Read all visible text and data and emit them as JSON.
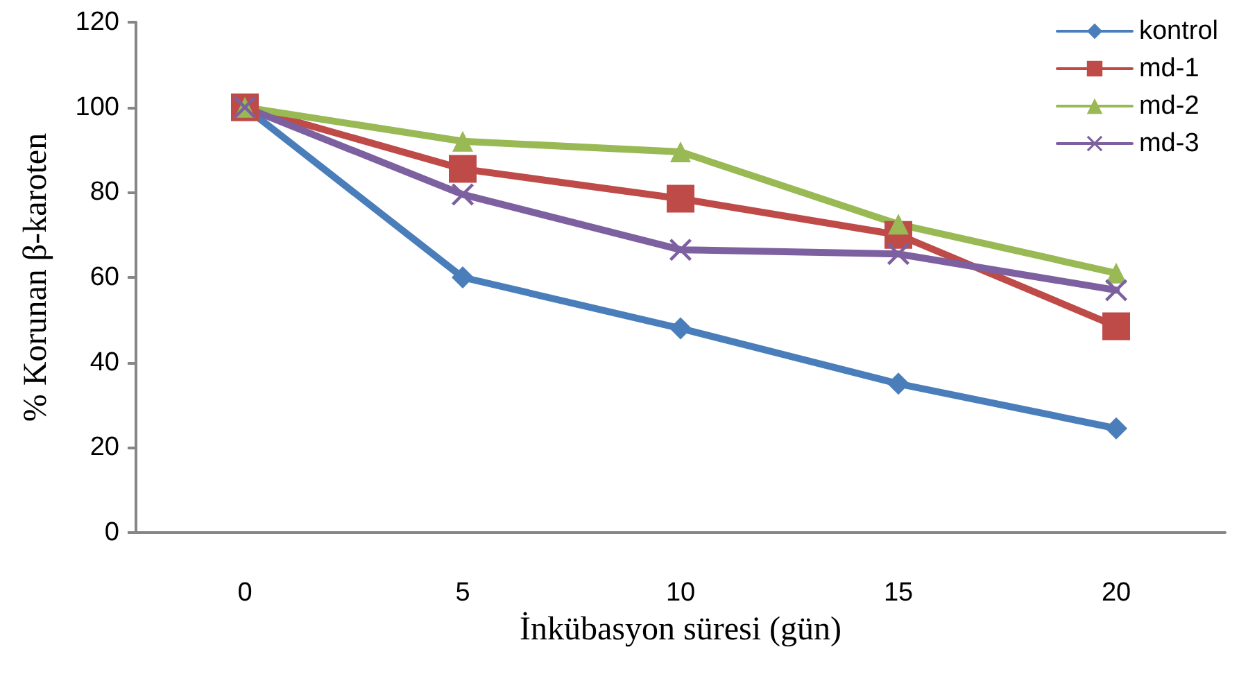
{
  "chart_data": {
    "type": "line",
    "xlabel": "İnkübasyon süresi (gün)",
    "ylabel": "% Korunan β-karoten",
    "categories": [
      "0",
      "5",
      "10",
      "15",
      "20"
    ],
    "series": [
      {
        "name": "kontrol",
        "color": "#4a7ebb",
        "marker": "diamond",
        "values": [
          100,
          60,
          48,
          35,
          24.5
        ]
      },
      {
        "name": "md-1",
        "color": "#be4b48",
        "marker": "square",
        "values": [
          100,
          85.5,
          78.5,
          70,
          48.5
        ]
      },
      {
        "name": "md-2",
        "color": "#98b954",
        "marker": "triangle",
        "values": [
          100,
          92,
          89.5,
          72.5,
          61
        ]
      },
      {
        "name": "md-3",
        "color": "#7d60a0",
        "marker": "cross",
        "values": [
          100,
          79.5,
          66.5,
          65.5,
          57
        ]
      }
    ],
    "ylim": [
      0,
      120
    ],
    "yticks": [
      0,
      20,
      40,
      60,
      80,
      100,
      120
    ],
    "grid": false,
    "legend": "top right",
    "line_style": "solid"
  }
}
